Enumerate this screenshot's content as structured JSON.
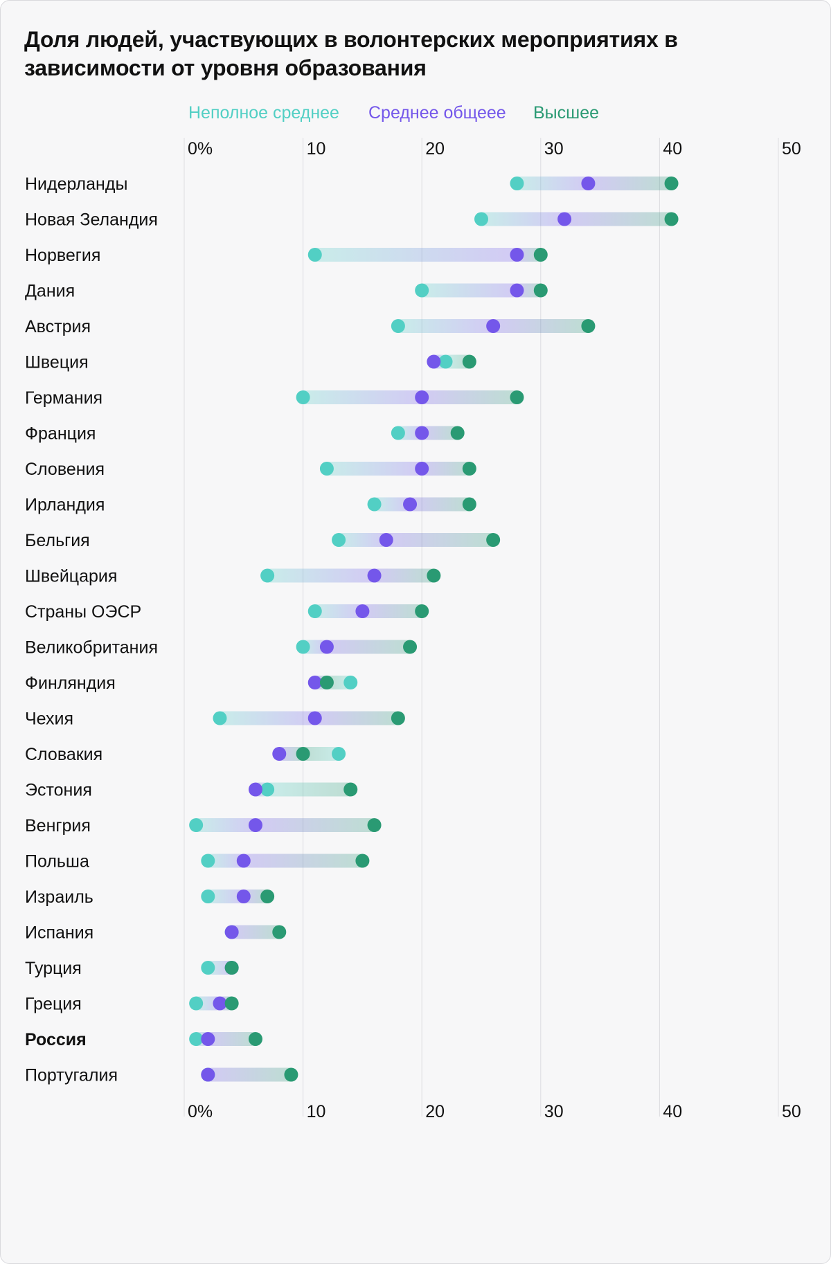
{
  "title": "Доля людей, участвующих в волонтерских мероприятиях в зависимости от уровня образования",
  "legend": {
    "lower_secondary": "Неполное среднее",
    "upper_secondary": "Среднее общеее",
    "tertiary": "Высшее"
  },
  "colors": {
    "lower_secondary": "#52cfc4",
    "upper_secondary": "#7457ea",
    "tertiary": "#2a9a73"
  },
  "chart_data": {
    "type": "dumbbell",
    "title": "Доля людей, участвующих в волонтерских мероприятиях в зависимости от уровня образования",
    "xlim": [
      0,
      50
    ],
    "x_ticks": [
      "0%",
      "10",
      "20",
      "30",
      "40",
      "50"
    ],
    "grid": true,
    "legend_position": "top",
    "highlight": "Россия",
    "series_names": [
      "Неполное среднее",
      "Среднее общеее",
      "Высшее"
    ],
    "rows": [
      {
        "country": "Нидерланды",
        "lower_secondary": 28,
        "upper_secondary": 34,
        "tertiary": 41
      },
      {
        "country": "Новая Зеландия",
        "lower_secondary": 25,
        "upper_secondary": 32,
        "tertiary": 41
      },
      {
        "country": "Норвегия",
        "lower_secondary": 11,
        "upper_secondary": 28,
        "tertiary": 30
      },
      {
        "country": "Дания",
        "lower_secondary": 20,
        "upper_secondary": 28,
        "tertiary": 30
      },
      {
        "country": "Австрия",
        "lower_secondary": 18,
        "upper_secondary": 26,
        "tertiary": 34
      },
      {
        "country": "Швеция",
        "lower_secondary": 22,
        "upper_secondary": 21,
        "tertiary": 24
      },
      {
        "country": "Германия",
        "lower_secondary": 10,
        "upper_secondary": 20,
        "tertiary": 28
      },
      {
        "country": "Франция",
        "lower_secondary": 18,
        "upper_secondary": 20,
        "tertiary": 23
      },
      {
        "country": "Словения",
        "lower_secondary": 12,
        "upper_secondary": 20,
        "tertiary": 24
      },
      {
        "country": "Ирландия",
        "lower_secondary": 16,
        "upper_secondary": 19,
        "tertiary": 24
      },
      {
        "country": "Бельгия",
        "lower_secondary": 13,
        "upper_secondary": 17,
        "tertiary": 26
      },
      {
        "country": "Швейцария",
        "lower_secondary": 7,
        "upper_secondary": 16,
        "tertiary": 21
      },
      {
        "country": "Страны ОЭСР",
        "lower_secondary": 11,
        "upper_secondary": 15,
        "tertiary": 20
      },
      {
        "country": "Великобритания",
        "lower_secondary": 10,
        "upper_secondary": 12,
        "tertiary": 19
      },
      {
        "country": "Финляндия",
        "lower_secondary": 14,
        "upper_secondary": 11,
        "tertiary": 12
      },
      {
        "country": "Чехия",
        "lower_secondary": 3,
        "upper_secondary": 11,
        "tertiary": 18
      },
      {
        "country": "Словакия",
        "lower_secondary": 13,
        "upper_secondary": 8,
        "tertiary": 10
      },
      {
        "country": "Эстония",
        "lower_secondary": 7,
        "upper_secondary": 6,
        "tertiary": 14
      },
      {
        "country": "Венгрия",
        "lower_secondary": 1,
        "upper_secondary": 6,
        "tertiary": 16
      },
      {
        "country": "Польша",
        "lower_secondary": 2,
        "upper_secondary": 5,
        "tertiary": 15
      },
      {
        "country": "Израиль",
        "lower_secondary": 2,
        "upper_secondary": 5,
        "tertiary": 7
      },
      {
        "country": "Испания",
        "lower_secondary": 4,
        "upper_secondary": 4,
        "tertiary": 8
      },
      {
        "country": "Турция",
        "lower_secondary": 2,
        "upper_secondary": 4,
        "tertiary": 4
      },
      {
        "country": "Греция",
        "lower_secondary": 1,
        "upper_secondary": 3,
        "tertiary": 4
      },
      {
        "country": "Россия",
        "lower_secondary": 1,
        "upper_secondary": 2,
        "tertiary": 6
      },
      {
        "country": "Португалия",
        "lower_secondary": 2,
        "upper_secondary": 2,
        "tertiary": 9
      }
    ]
  }
}
